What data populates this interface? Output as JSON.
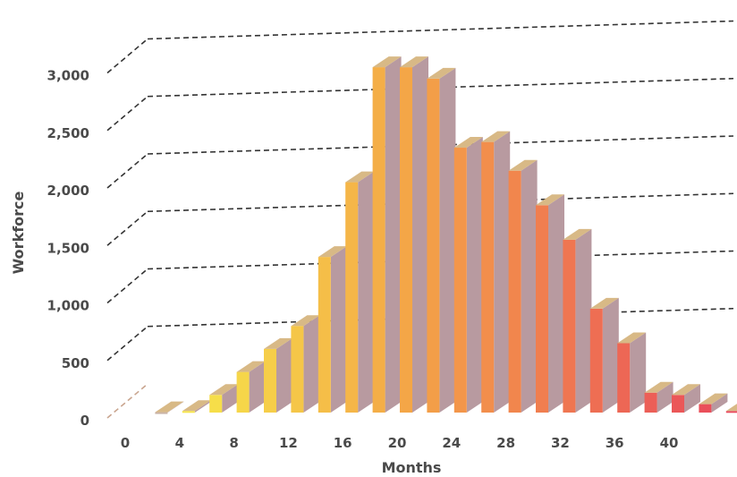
{
  "chart_data": {
    "type": "bar",
    "style": "3d-stepped",
    "xlabel": "Months",
    "ylabel": "Workforce",
    "ylim": [
      0,
      3250
    ],
    "yticks": [
      {
        "value": 0,
        "label": "0"
      },
      {
        "value": 500,
        "label": "500"
      },
      {
        "value": 1000,
        "label": "1,000"
      },
      {
        "value": 1500,
        "label": "1,500"
      },
      {
        "value": 2000,
        "label": "2,000"
      },
      {
        "value": 2500,
        "label": "2,500"
      },
      {
        "value": 3000,
        "label": "3,000"
      }
    ],
    "xticks": [
      {
        "value": 0,
        "label": "0"
      },
      {
        "value": 4,
        "label": "4"
      },
      {
        "value": 8,
        "label": "8"
      },
      {
        "value": 12,
        "label": "12"
      },
      {
        "value": 16,
        "label": "16"
      },
      {
        "value": 20,
        "label": "20"
      },
      {
        "value": 24,
        "label": "24"
      },
      {
        "value": 28,
        "label": "28"
      },
      {
        "value": 32,
        "label": "32"
      },
      {
        "value": 36,
        "label": "36"
      },
      {
        "value": 40,
        "label": "40"
      }
    ],
    "grid": true,
    "colors": {
      "low": "#f7ee4a",
      "mid": "#f4a247",
      "high": "#e9475c",
      "side": "#b89aa0",
      "top": "#d8b986",
      "first": "#c9b2a6"
    },
    "x": [
      2,
      4,
      6,
      8,
      10,
      12,
      14,
      16,
      18,
      20,
      22,
      24,
      26,
      28,
      30,
      32,
      34,
      36,
      38,
      40,
      42,
      44
    ],
    "values": [
      50,
      60,
      200,
      400,
      600,
      800,
      1400,
      2050,
      3050,
      3050,
      2950,
      2350,
      2400,
      2150,
      1850,
      1550,
      950,
      650,
      220,
      200,
      120,
      60
    ]
  }
}
